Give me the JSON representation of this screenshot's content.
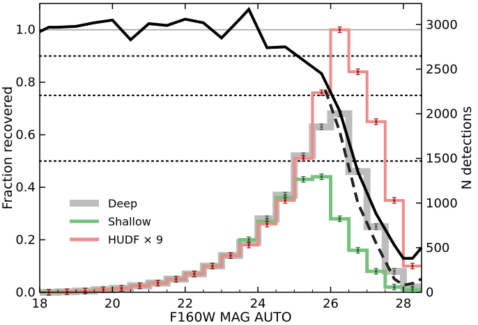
{
  "chart_data": {
    "type": "line",
    "xlabel": "F160W MAG AUTO",
    "ylabel_left": "Fraction recovered",
    "ylabel_right": "N detections",
    "xlim": [
      18,
      28.5
    ],
    "ylim_left": [
      0,
      1.1
    ],
    "ylim_right": [
      0,
      3236
    ],
    "xticks": [
      18,
      20,
      22,
      24,
      26,
      28
    ],
    "xtick_labels": [
      "18",
      "20",
      "22",
      "24",
      "26",
      "28"
    ],
    "yticks_left": [
      0.0,
      0.2,
      0.4,
      0.6,
      0.8,
      1.0
    ],
    "ytick_labels_left": [
      "0.0",
      "0.2",
      "0.4",
      "0.6",
      "0.8",
      "1.0"
    ],
    "yticks_right": [
      0,
      500,
      1000,
      1500,
      2000,
      2500,
      3000
    ],
    "ytick_labels_right": [
      "0",
      "500",
      "1000",
      "1500",
      "2000",
      "2500",
      "3000"
    ],
    "grid": false,
    "legend_position": "center-left",
    "reference_lines": [
      {
        "y": 1.0,
        "style": "solid",
        "color": "#b0b0b0"
      },
      {
        "y": 0.9,
        "style": "dotted",
        "color": "#000000"
      },
      {
        "y": 0.75,
        "style": "dotted",
        "color": "#000000"
      },
      {
        "y": 0.5,
        "style": "dotted",
        "color": "#000000"
      }
    ],
    "bin_edges": [
      18.0,
      18.5,
      19.0,
      19.5,
      20.0,
      20.5,
      21.0,
      21.5,
      22.0,
      22.5,
      23.0,
      23.5,
      24.0,
      24.5,
      25.0,
      25.5,
      26.0,
      26.5,
      27.0,
      27.5,
      28.0,
      28.5
    ],
    "step_series": [
      {
        "name": "Deep",
        "color": "#bdbdbd",
        "width": 10,
        "values": [
          0.0,
          0.002,
          0.005,
          0.01,
          0.015,
          0.025,
          0.035,
          0.05,
          0.07,
          0.1,
          0.14,
          0.19,
          0.28,
          0.37,
          0.52,
          0.63,
          0.68,
          0.46,
          0.25,
          0.08,
          0.02
        ]
      },
      {
        "name": "Shallow",
        "color": "#79c07d",
        "width": 5,
        "values": [
          0.0,
          0.002,
          0.005,
          0.01,
          0.015,
          0.025,
          0.035,
          0.05,
          0.07,
          0.1,
          0.14,
          0.2,
          0.27,
          0.36,
          0.43,
          0.44,
          0.28,
          0.16,
          0.08,
          0.02,
          0.01
        ]
      },
      {
        "name": "HUDF × 9",
        "color": "#f08a8a",
        "width": 4,
        "values": [
          0.0,
          0.002,
          0.005,
          0.01,
          0.015,
          0.025,
          0.035,
          0.05,
          0.07,
          0.1,
          0.14,
          0.18,
          0.26,
          0.35,
          0.51,
          0.76,
          1.0,
          0.84,
          0.65,
          0.35,
          0.1
        ]
      }
    ],
    "line_series": [
      {
        "axis": "right",
        "style": "solid",
        "color": "#000000",
        "width": 4,
        "x": [
          18.0,
          18.25,
          18.5,
          19.0,
          19.5,
          20.0,
          20.5,
          21.0,
          21.5,
          22.0,
          22.5,
          23.0,
          23.5,
          23.75,
          24.25,
          24.75,
          25.25,
          25.75,
          26.25,
          26.75,
          27.25,
          27.75,
          28.0,
          28.25,
          28.5
        ],
        "y": [
          2920,
          2970,
          2970,
          2980,
          3020,
          3050,
          2830,
          3010,
          2990,
          3060,
          3020,
          2850,
          3060,
          3170,
          2740,
          2750,
          2600,
          2450,
          2030,
          1350,
          880,
          530,
          380,
          380,
          500
        ]
      },
      {
        "axis": "right",
        "style": "dashed",
        "color": "#222222",
        "width": 4,
        "x": [
          25.85,
          26.25,
          26.75,
          27.25,
          27.75,
          28.0,
          28.25,
          28.5
        ],
        "y": [
          2270,
          1800,
          1000,
          550,
          150,
          80,
          100,
          150
        ]
      }
    ]
  }
}
